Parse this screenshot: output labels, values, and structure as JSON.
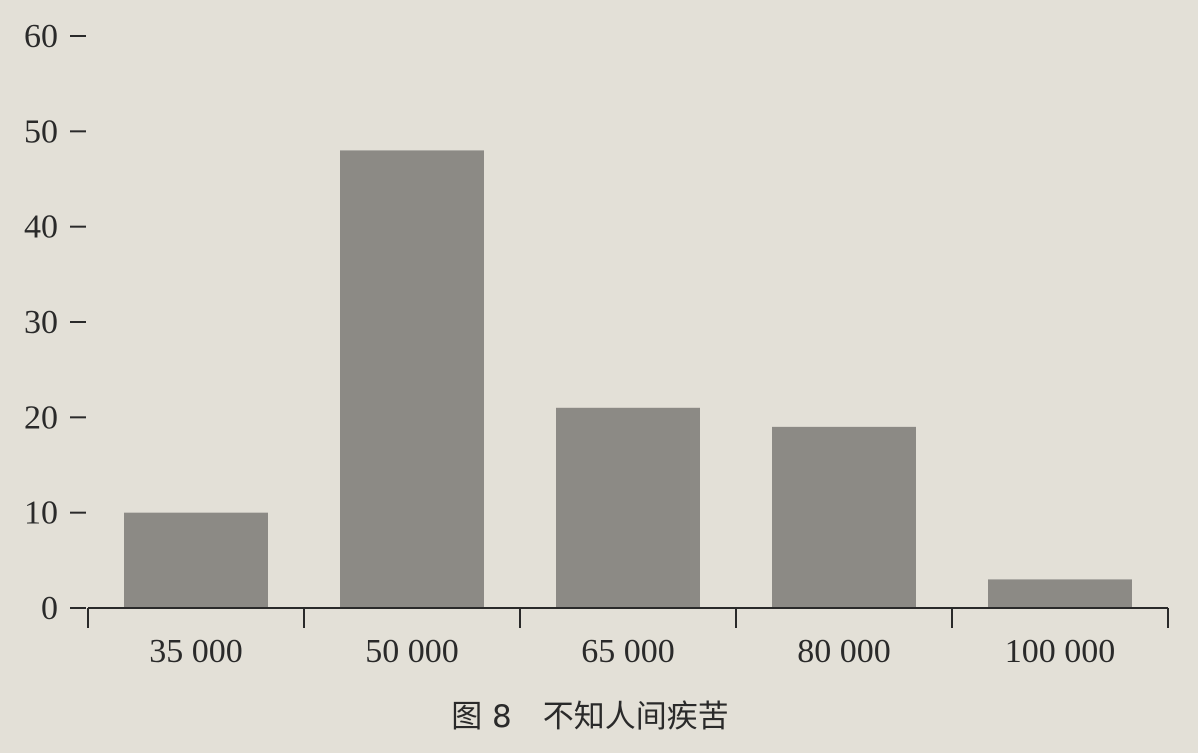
{
  "chart_data": {
    "type": "bar",
    "title": "图 8　不知人间疾苦",
    "xlabel": "",
    "ylabel": "",
    "categories": [
      "35 000",
      "50 000",
      "65 000",
      "80 000",
      "100 000"
    ],
    "values": [
      10,
      48,
      21,
      19,
      3
    ],
    "ylim": [
      0,
      60
    ],
    "yticks": [
      0,
      10,
      20,
      30,
      40,
      50,
      60
    ],
    "grid": false,
    "bar_color": "#8c8a85",
    "axis_color": "#2a2a2a"
  }
}
